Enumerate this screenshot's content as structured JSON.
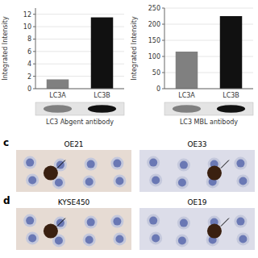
{
  "chart_data": [
    {
      "type": "bar",
      "categories": [
        "LC3A",
        "LC3B"
      ],
      "values": [
        1.5,
        11.5
      ],
      "colors": [
        "#808080",
        "#111111"
      ],
      "ylabel": "Integrated Intensity",
      "ylim": [
        0,
        13
      ],
      "yticks": [
        0,
        2,
        4,
        6,
        8,
        10,
        12
      ],
      "annotations": [
        "LC3 Abgent antibody"
      ]
    },
    {
      "type": "bar",
      "categories": [
        "LC3A",
        "LC3B"
      ],
      "values": [
        115,
        225
      ],
      "colors": [
        "#808080",
        "#111111"
      ],
      "ylabel": "Integrated Intensity",
      "ylim": [
        0,
        250
      ],
      "yticks": [
        0,
        50,
        100,
        150,
        200,
        250
      ],
      "annotations": [
        "LC3 MBL antibody"
      ]
    },
    {
      "type": "micrographs",
      "title": "c",
      "categories": [
        "OE21",
        "OE33"
      ]
    },
    {
      "type": "micrographs",
      "title": "d",
      "categories": [
        "KYSE450",
        "OE19"
      ]
    }
  ]
}
